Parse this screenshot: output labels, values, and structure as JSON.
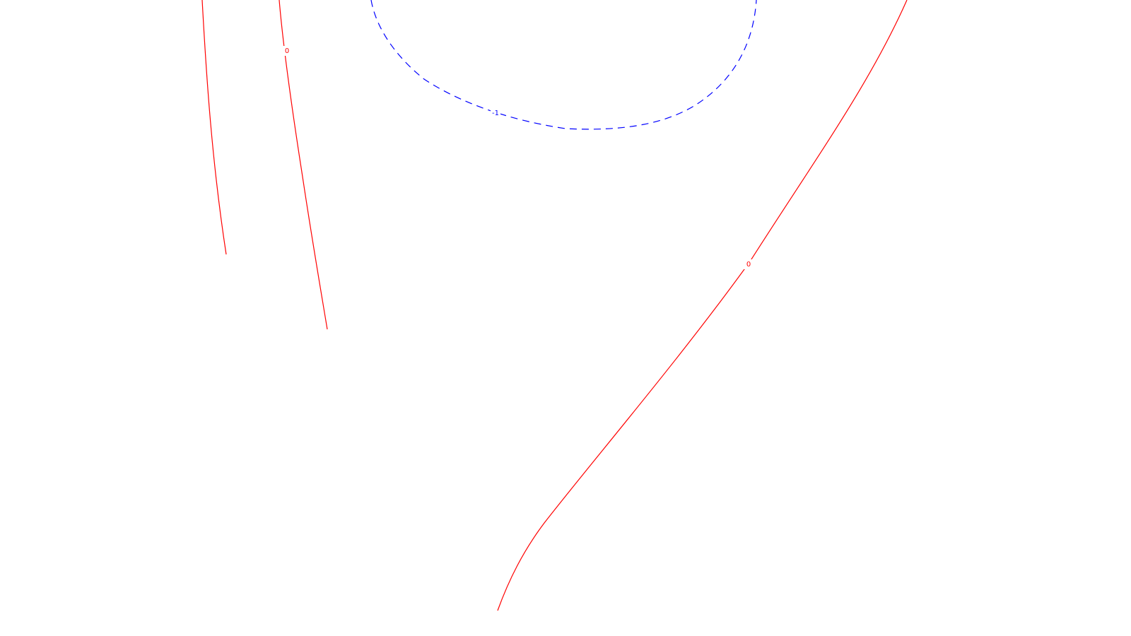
{
  "chart_data": {
    "type": "contour",
    "title": "",
    "xlabel": "",
    "ylabel": "",
    "grid": false,
    "legend": "none",
    "colors": {
      "positive_or_zero": "#ff0000",
      "negative": "#0000ff",
      "background": "#ffffff"
    },
    "contours": [
      {
        "level": "0",
        "style": "solid",
        "color": "#ff0000",
        "labels": []
      },
      {
        "level": "0",
        "style": "solid",
        "color": "#ff0000",
        "labels": [
          "0"
        ]
      },
      {
        "level": "0",
        "style": "solid",
        "color": "#ff0000",
        "labels": [
          "0"
        ]
      },
      {
        "level": "-1",
        "style": "dashed",
        "color": "#0000ff",
        "labels": [
          "-1"
        ]
      }
    ]
  }
}
